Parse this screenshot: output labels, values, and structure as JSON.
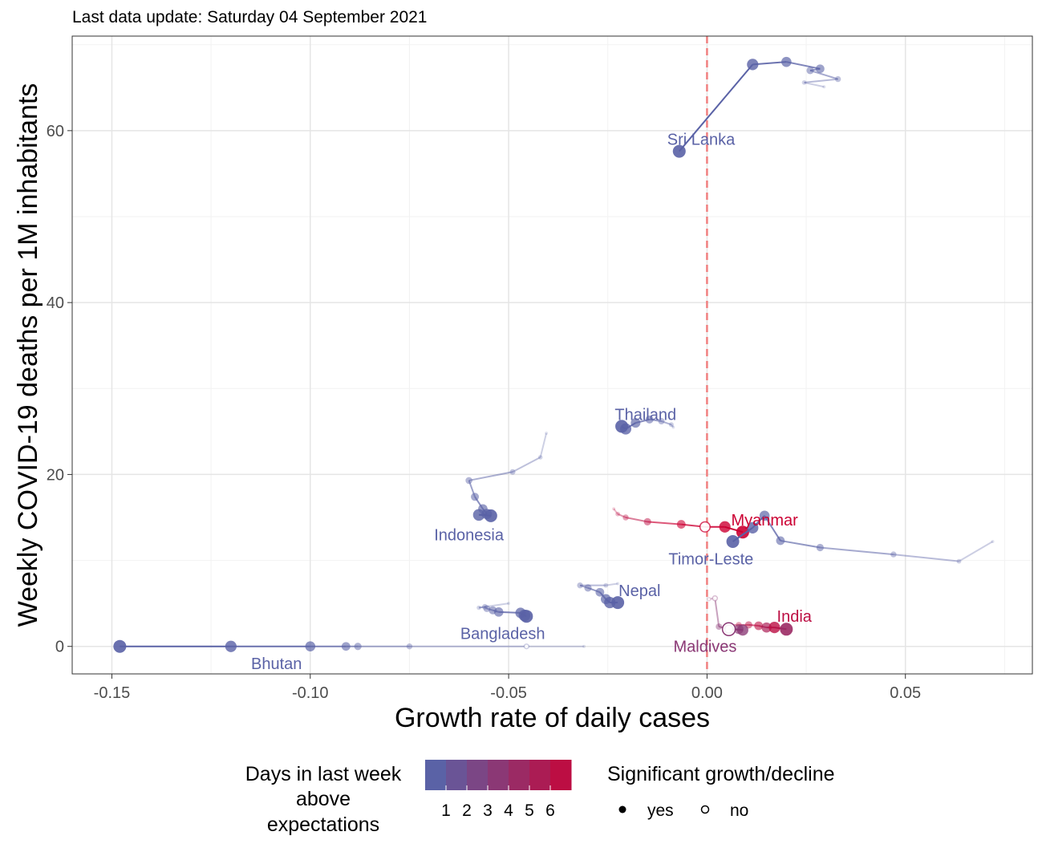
{
  "chart_data": {
    "type": "scatter",
    "subtitle": "Last data update: Saturday 04 September 2021",
    "xlabel": "Growth rate of daily cases",
    "ylabel": "Weekly COVID-19 deaths per 1M inhabitants",
    "xlim": [
      -0.16,
      0.082
    ],
    "ylim": [
      -3.2,
      71
    ],
    "x_ticks": [
      -0.15,
      -0.1,
      -0.05,
      0.0,
      0.05
    ],
    "x_tick_labels": [
      "-0.15",
      "-0.10",
      "-0.05",
      "0.00",
      "0.05"
    ],
    "y_ticks": [
      0,
      20,
      40,
      60
    ],
    "y_tick_labels": [
      "0",
      "20",
      "40",
      "60"
    ],
    "grid": true,
    "reference_line": {
      "x": 0,
      "color": "#f08080",
      "style": "dashed"
    },
    "color_scale": {
      "low": "#5a62a6",
      "high": "#cc0033",
      "min": 0,
      "max": 7
    },
    "legend": {
      "color_title_lines": [
        "Days in last week",
        "above",
        "expectations"
      ],
      "color_labels": [
        "1",
        "2",
        "3",
        "4",
        "5",
        "6"
      ],
      "shape_title": "Significant growth/decline",
      "shape_labels": [
        "yes",
        "no"
      ],
      "position": "bottom"
    },
    "series": [
      {
        "name": "Sri Lanka",
        "days_above": 0,
        "label_pos": [
          -0.0015,
          59
        ],
        "points": [
          [
            0.0295,
            65.1,
            0,
            true
          ],
          [
            0.0245,
            65.6,
            0,
            true
          ],
          [
            0.033,
            66.0,
            0,
            true
          ],
          [
            0.026,
            67.0,
            0,
            true
          ],
          [
            0.0285,
            67.2,
            0,
            true
          ],
          [
            0.02,
            68.0,
            0,
            true
          ],
          [
            0.0115,
            67.7,
            0,
            true
          ],
          [
            -0.007,
            57.6,
            0,
            true
          ]
        ]
      },
      {
        "name": "Thailand",
        "days_above": 0,
        "label_pos": [
          -0.0155,
          27.0
        ],
        "points": [
          [
            -0.0085,
            25.5,
            0,
            true
          ],
          [
            -0.009,
            25.8,
            0,
            true
          ],
          [
            -0.0115,
            26.2,
            0,
            true
          ],
          [
            -0.0145,
            26.4,
            0,
            true
          ],
          [
            -0.018,
            26.0,
            0,
            true
          ],
          [
            -0.0205,
            25.3,
            0,
            true
          ],
          [
            -0.0215,
            25.6,
            0,
            true
          ]
        ]
      },
      {
        "name": "Indonesia",
        "days_above": 0,
        "label_pos": [
          -0.06,
          13.0
        ],
        "points": [
          [
            -0.0405,
            24.8,
            0,
            true
          ],
          [
            -0.042,
            22.0,
            0,
            true
          ],
          [
            -0.049,
            20.3,
            0,
            true
          ],
          [
            -0.06,
            19.3,
            0,
            true
          ],
          [
            -0.0585,
            17.4,
            0,
            true
          ],
          [
            -0.0565,
            16.0,
            0,
            true
          ],
          [
            -0.0555,
            15.4,
            0,
            true
          ],
          [
            -0.0575,
            15.3,
            0,
            true
          ],
          [
            -0.0545,
            15.2,
            0,
            true
          ]
        ]
      },
      {
        "name": "Myanmar",
        "days_above": 7,
        "label_pos": [
          0.0145,
          14.7
        ],
        "points": [
          [
            -0.0235,
            16.0,
            6,
            true
          ],
          [
            -0.0225,
            15.4,
            6,
            true
          ],
          [
            -0.0205,
            15.0,
            6,
            true
          ],
          [
            -0.015,
            14.5,
            6,
            true
          ],
          [
            -0.0065,
            14.2,
            7,
            true
          ],
          [
            -0.0005,
            13.9,
            7,
            false
          ],
          [
            0.0045,
            13.9,
            7,
            true
          ],
          [
            0.009,
            13.3,
            7,
            true
          ]
        ]
      },
      {
        "name": "Timor-Leste",
        "days_above": 0,
        "label_pos": [
          0.001,
          10.2
        ],
        "points": [
          [
            0.072,
            12.2,
            0,
            true
          ],
          [
            0.0635,
            9.9,
            0,
            true
          ],
          [
            0.047,
            10.7,
            0,
            true
          ],
          [
            0.0285,
            11.5,
            0,
            true
          ],
          [
            0.0185,
            12.3,
            0,
            true
          ],
          [
            0.0145,
            15.2,
            0,
            true
          ],
          [
            0.0115,
            13.8,
            0,
            true
          ],
          [
            0.0065,
            12.2,
            0,
            true
          ]
        ]
      },
      {
        "name": "Nepal",
        "days_above": 0,
        "label_pos": [
          -0.017,
          6.5
        ],
        "points": [
          [
            -0.0225,
            7.3,
            0,
            true
          ],
          [
            -0.0255,
            7.1,
            0,
            true
          ],
          [
            -0.032,
            7.1,
            0,
            true
          ],
          [
            -0.03,
            6.8,
            0,
            true
          ],
          [
            -0.027,
            6.3,
            0,
            true
          ],
          [
            -0.0255,
            5.5,
            0,
            true
          ],
          [
            -0.0245,
            5.1,
            0,
            true
          ],
          [
            -0.0225,
            5.1,
            0,
            true
          ]
        ]
      },
      {
        "name": "Bangladesh",
        "days_above": 0,
        "label_pos": [
          -0.0515,
          1.5
        ],
        "points": [
          [
            -0.05,
            5.0,
            0,
            true
          ],
          [
            -0.0575,
            4.5,
            0,
            true
          ],
          [
            -0.056,
            4.6,
            0,
            true
          ],
          [
            -0.0555,
            4.4,
            0,
            true
          ],
          [
            -0.054,
            4.2,
            0,
            true
          ],
          [
            -0.0525,
            4.0,
            0,
            true
          ],
          [
            -0.047,
            3.9,
            0,
            true
          ],
          [
            -0.046,
            3.6,
            0,
            true
          ],
          [
            -0.0455,
            3.5,
            0,
            true
          ]
        ]
      },
      {
        "name": "India",
        "days_above": 6,
        "label_pos": [
          0.022,
          3.5
        ],
        "points": [
          [
            0.0045,
            2.3,
            5,
            true
          ],
          [
            0.0055,
            2.5,
            5,
            true
          ],
          [
            0.008,
            2.5,
            6,
            true
          ],
          [
            0.0105,
            2.5,
            6,
            true
          ],
          [
            0.013,
            2.4,
            6,
            true
          ],
          [
            0.015,
            2.2,
            5,
            true
          ],
          [
            0.017,
            2.2,
            6,
            true
          ],
          [
            0.02,
            2.0,
            4,
            true
          ]
        ]
      },
      {
        "name": "Maldives",
        "days_above": 3,
        "label_pos": [
          -0.0005,
          0.0
        ],
        "points": [
          [
            0.0005,
            5.5,
            3,
            false
          ],
          [
            0.002,
            5.6,
            3,
            false
          ],
          [
            0.003,
            2.3,
            3,
            true
          ],
          [
            0.0055,
            2.0,
            3,
            false
          ],
          [
            0.008,
            2.0,
            3,
            true
          ],
          [
            0.009,
            1.9,
            3,
            true
          ],
          [
            0.0055,
            2.0,
            3,
            false
          ]
        ]
      },
      {
        "name": "Bhutan",
        "days_above": 0,
        "label_pos": [
          -0.1085,
          -2.0
        ],
        "points": [
          [
            -0.031,
            0.0,
            0,
            true
          ],
          [
            -0.0455,
            0.0,
            0,
            false
          ],
          [
            -0.075,
            0.0,
            0,
            true
          ],
          [
            -0.088,
            0.0,
            0,
            true
          ],
          [
            -0.091,
            0.0,
            0,
            true
          ],
          [
            -0.1,
            0.0,
            0,
            true
          ],
          [
            -0.12,
            0.0,
            0,
            true
          ],
          [
            -0.148,
            0.0,
            0,
            true
          ]
        ]
      }
    ]
  }
}
